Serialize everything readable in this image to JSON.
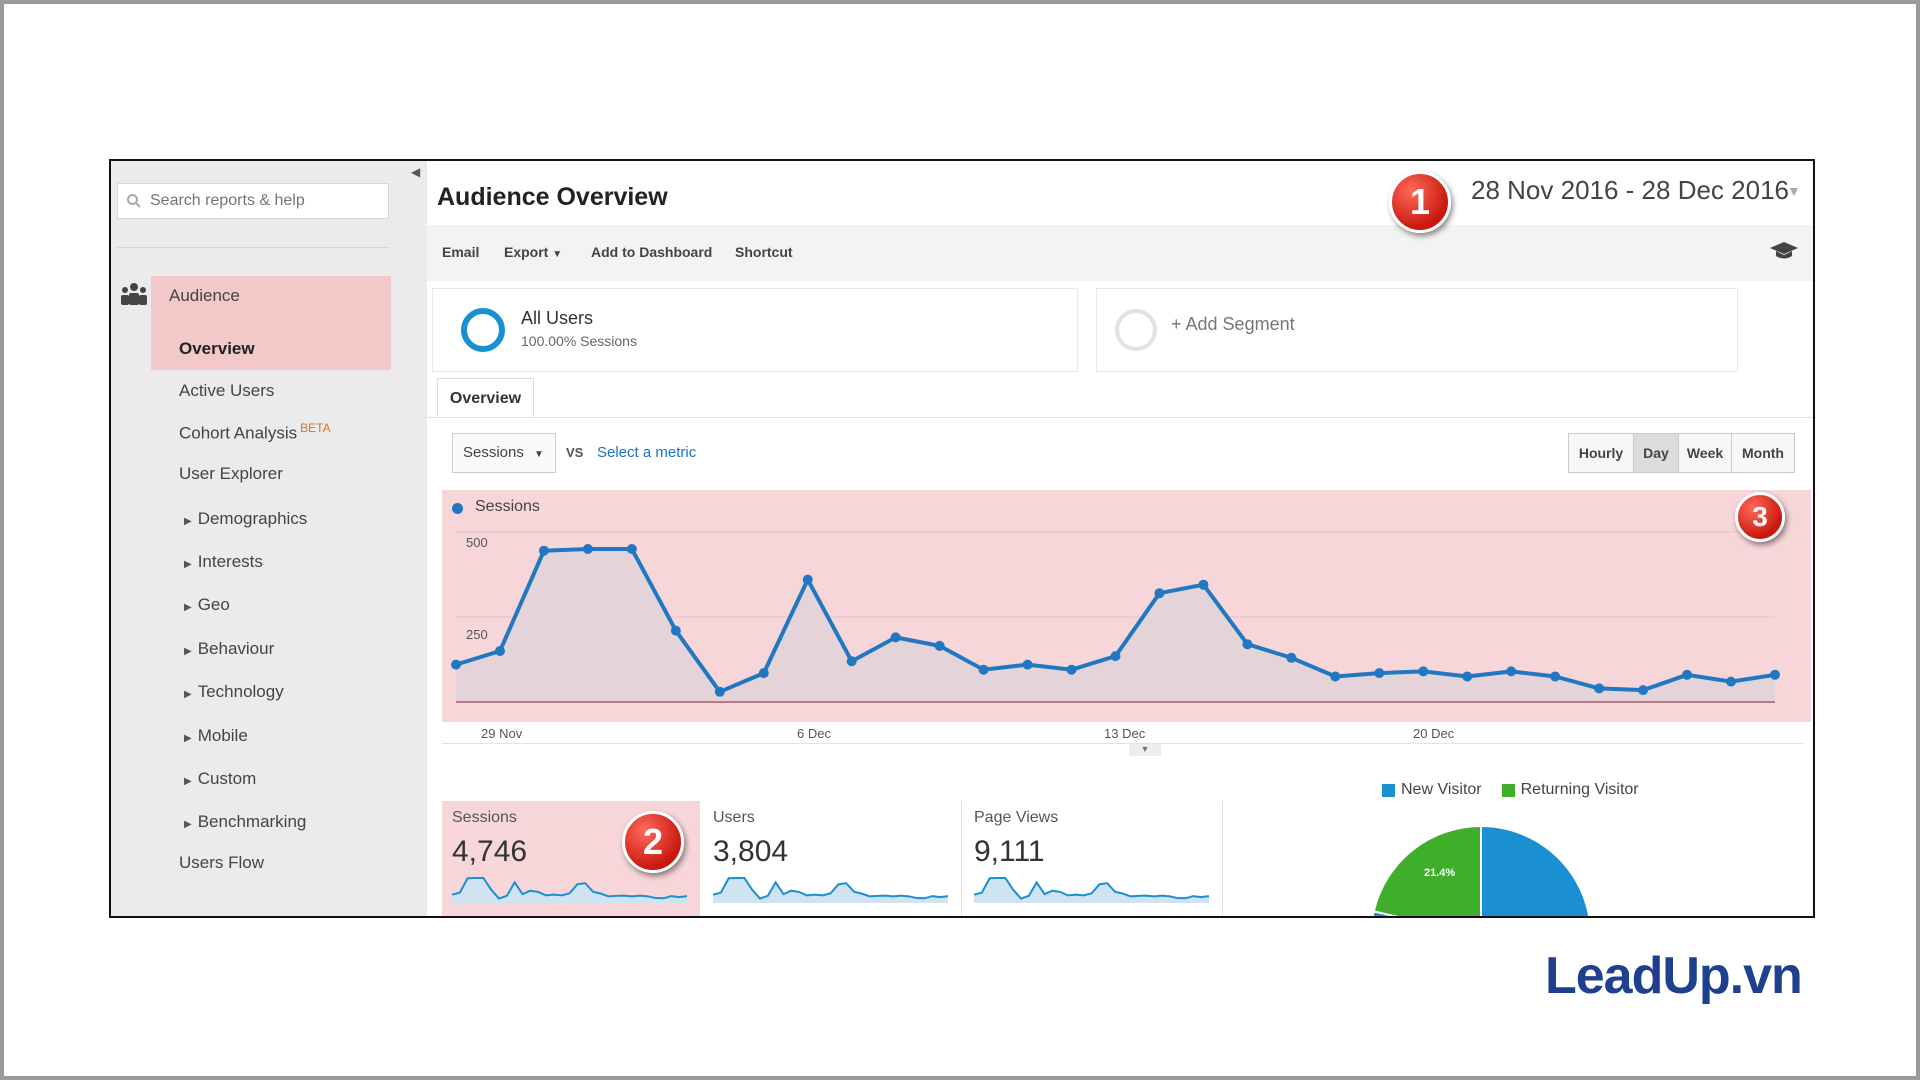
{
  "search": {
    "placeholder": "Search reports & help"
  },
  "sidebar": {
    "section": "Audience",
    "items": [
      {
        "label": "Overview",
        "expandable": false
      },
      {
        "label": "Active Users",
        "expandable": false
      },
      {
        "label": "Cohort Analysis",
        "badge": "BETA",
        "expandable": false
      },
      {
        "label": "User Explorer",
        "expandable": false
      },
      {
        "label": "Demographics",
        "expandable": true
      },
      {
        "label": "Interests",
        "expandable": true
      },
      {
        "label": "Geo",
        "expandable": true
      },
      {
        "label": "Behaviour",
        "expandable": true
      },
      {
        "label": "Technology",
        "expandable": true
      },
      {
        "label": "Mobile",
        "expandable": true
      },
      {
        "label": "Custom",
        "expandable": true
      },
      {
        "label": "Benchmarking",
        "expandable": true
      },
      {
        "label": "Users Flow",
        "expandable": false
      }
    ]
  },
  "header": {
    "title": "Audience Overview",
    "date_range": "28 Nov 2016 - 28 Dec 2016"
  },
  "toolbar": {
    "email": "Email",
    "export": "Export",
    "add_to_dashboard": "Add to Dashboard",
    "shortcut": "Shortcut"
  },
  "segments": {
    "all_users": {
      "label": "All Users",
      "sub": "100.00% Sessions"
    },
    "add": "+ Add Segment"
  },
  "tabs": [
    "Overview"
  ],
  "metric": {
    "selected": "Sessions",
    "vs": "VS",
    "select_metric": "Select a metric"
  },
  "granularity": {
    "options": [
      "Hourly",
      "Day",
      "Week",
      "Month"
    ],
    "active": "Day"
  },
  "badges": [
    "1",
    "2",
    "3"
  ],
  "chart_data": {
    "type": "line",
    "series": [
      {
        "name": "Sessions",
        "values": [
          110,
          150,
          445,
          450,
          450,
          210,
          30,
          85,
          360,
          120,
          190,
          165,
          95,
          110,
          95,
          135,
          320,
          345,
          170,
          130,
          75,
          85,
          90,
          75,
          90,
          75,
          40,
          35,
          80,
          60,
          80
        ]
      }
    ],
    "x_ticks": [
      "29 Nov",
      "6 Dec",
      "13 Dec",
      "20 Dec"
    ],
    "y_ticks": [
      "500",
      "250"
    ],
    "ylim": [
      0,
      500
    ],
    "color": "#1f78c1"
  },
  "scorecards": [
    {
      "label": "Sessions",
      "value": "4,746"
    },
    {
      "label": "Users",
      "value": "3,804"
    },
    {
      "label": "Page Views",
      "value": "9,111"
    }
  ],
  "pie": {
    "legend": [
      {
        "label": "New Visitor",
        "color": "#1a8fd1"
      },
      {
        "label": "Returning Visitor",
        "color": "#3fae2a"
      }
    ],
    "returning_pct_label": "21.4%",
    "returning_pct": 21.4
  },
  "logo": "LeadUp.vn"
}
